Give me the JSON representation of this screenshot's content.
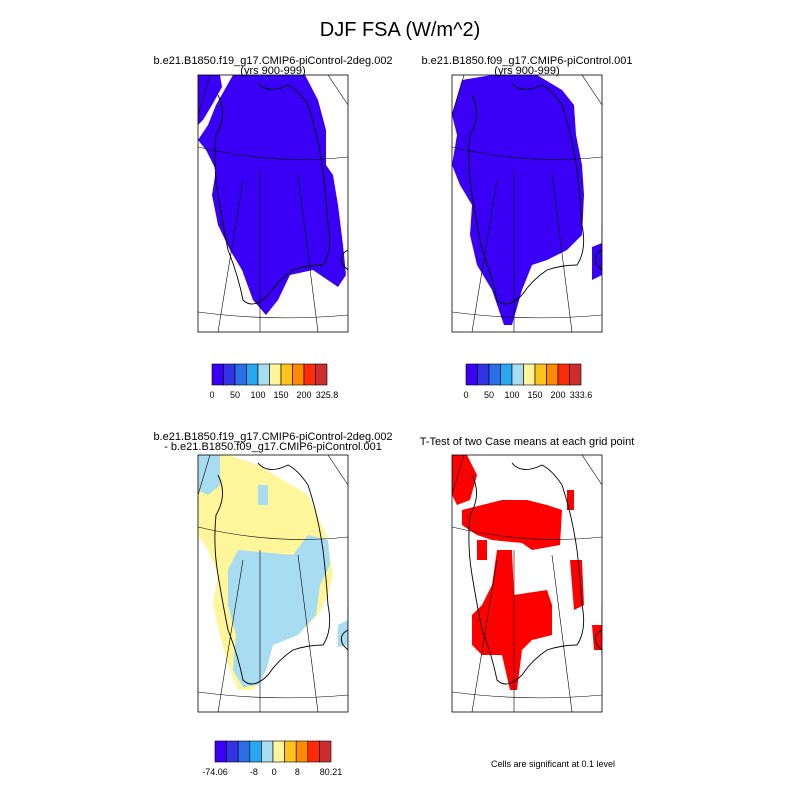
{
  "title": "DJF FSA (W/m^2)",
  "panels": [
    {
      "title": "b.e21.B1850.f19_g17.CMIP6-piControl-2deg.002",
      "subtitle": "(yrs 900-999)",
      "colorbar": {
        "colors": [
          "#3a00f5",
          "#3333e6",
          "#2a6ee8",
          "#28a8f0",
          "#a8dcf0",
          "#fff59a",
          "#ffc21a",
          "#ff8a00",
          "#ff2a0a",
          "#cc2e2e"
        ],
        "labels": [
          0,
          50,
          100,
          150,
          200,
          325.8
        ]
      }
    },
    {
      "title": "b.e21.B1850.f09_g17.CMIP6-piControl.001",
      "subtitle": "(yrs 900-999)",
      "colorbar": {
        "colors": [
          "#3a00f5",
          "#3333e6",
          "#2a6ee8",
          "#28a8f0",
          "#a8dcf0",
          "#fff59a",
          "#ffc21a",
          "#ff8a00",
          "#ff2a0a",
          "#cc2e2e"
        ],
        "labels": [
          0,
          50,
          100,
          150,
          200,
          333.6
        ]
      }
    },
    {
      "title": "b.e21.B1850.f19_g17.CMIP6-piControl-2deg.002",
      "subtitle": "- b.e21.B1850.f09_g17.CMIP6-piControl.001",
      "colorbar": {
        "colors": [
          "#3a00f5",
          "#3333e6",
          "#2a6ee8",
          "#28a8f0",
          "#a8dcf0",
          "#fff59a",
          "#ffc21a",
          "#ff8a00",
          "#ff2a0a",
          "#cc2e2e"
        ],
        "labels": [
          -74.06,
          -8,
          0,
          8,
          80.21
        ]
      }
    },
    {
      "title": "T-Test of two Case means at each grid point",
      "note": "Cells are significant at 0.1 level"
    }
  ]
}
